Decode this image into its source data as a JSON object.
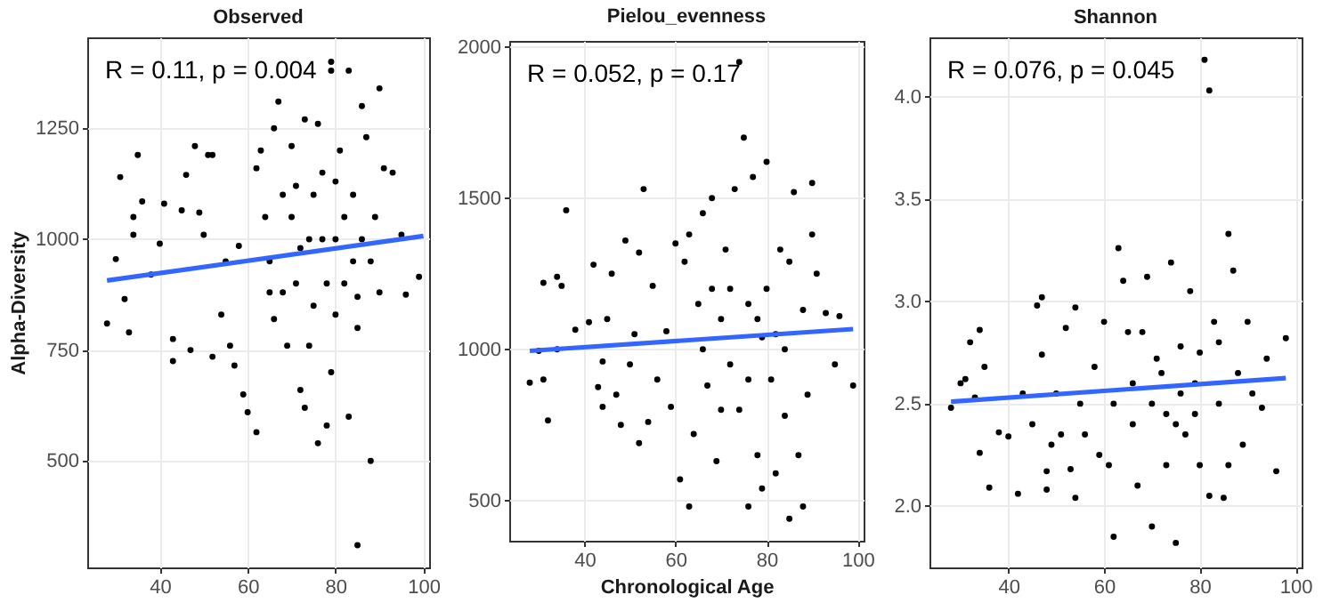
{
  "chart_data": [
    {
      "type": "scatter",
      "title": "Observed",
      "ylabel": "Alpha-Diversity",
      "annotations": [
        "R = 0.11, p = 0.004"
      ],
      "xlim": [
        23.5,
        101.3
      ],
      "ylim": [
        260,
        1455
      ],
      "xticks": [
        40,
        60,
        80,
        100
      ],
      "yticks": [
        500,
        750,
        1000,
        1250
      ],
      "grid": true,
      "series": [
        {
          "type": "scatter",
          "marker": "circle",
          "color": "#000000",
          "x": [
            28,
            30,
            31,
            32,
            33,
            34,
            34,
            35,
            36,
            38,
            40,
            41,
            43,
            43,
            45,
            46,
            47,
            48,
            49,
            50,
            51,
            52,
            52,
            54,
            55,
            56,
            57,
            58,
            59,
            60,
            62,
            62,
            63,
            64,
            65,
            66,
            67,
            68,
            69,
            70,
            71,
            72,
            73,
            73,
            74,
            75,
            76,
            76,
            77,
            78,
            79,
            79,
            79,
            80,
            81,
            82,
            83,
            83,
            84,
            85,
            85,
            86,
            87,
            88,
            88,
            89,
            90,
            90,
            91,
            93,
            95,
            96,
            99,
            65,
            70,
            72,
            75,
            78,
            80,
            82,
            68,
            74,
            77,
            84,
            86,
            66,
            71,
            80,
            85
          ],
          "values": [
            810,
            955,
            1140,
            865,
            790,
            1050,
            1010,
            1190,
            1085,
            920,
            990,
            1080,
            775,
            725,
            1065,
            1145,
            750,
            1210,
            1060,
            1010,
            1190,
            1190,
            735,
            830,
            950,
            760,
            715,
            985,
            650,
            610,
            565,
            1160,
            1200,
            1050,
            880,
            1250,
            1310,
            1100,
            760,
            1210,
            900,
            660,
            1270,
            620,
            1000,
            850,
            540,
            1260,
            1150,
            580,
            1400,
            1380,
            700,
            1000,
            1200,
            900,
            1380,
            600,
            1100,
            310,
            800,
            1300,
            1230,
            500,
            950,
            1050,
            1340,
            880,
            1160,
            1150,
            1010,
            875,
            915,
            950,
            1050,
            980,
            1100,
            900,
            830,
            1050,
            880,
            760,
            1000,
            950,
            1000,
            820,
            1120,
            1130,
            870
          ]
        },
        {
          "type": "line",
          "marker": "none",
          "color": "#3366ff",
          "x": [
            28,
            100
          ],
          "values": [
            907,
            1007
          ]
        }
      ]
    },
    {
      "type": "scatter",
      "title": "Pielou_evenness",
      "xlabel": "Chronological Age",
      "annotations": [
        "R = 0.052, p = 0.17"
      ],
      "xlim": [
        23.5,
        101.3
      ],
      "ylim": [
        367,
        2020
      ],
      "xticks": [
        40,
        60,
        80,
        100
      ],
      "yticks": [
        500,
        1000,
        1500,
        2000
      ],
      "grid": true,
      "series": [
        {
          "type": "scatter",
          "marker": "circle",
          "color": "#000000",
          "x": [
            28,
            30,
            31,
            31,
            32,
            34,
            34,
            35,
            36,
            38,
            41,
            42,
            43,
            44,
            44,
            45,
            46,
            47,
            48,
            49,
            50,
            51,
            52,
            52,
            53,
            54,
            55,
            56,
            58,
            59,
            60,
            61,
            62,
            63,
            63,
            64,
            65,
            66,
            67,
            68,
            69,
            70,
            71,
            72,
            73,
            74,
            75,
            76,
            76,
            77,
            78,
            79,
            79,
            80,
            80,
            81,
            82,
            83,
            84,
            85,
            85,
            86,
            87,
            88,
            88,
            89,
            90,
            90,
            91,
            93,
            95,
            96,
            99,
            74,
            66,
            70,
            72,
            78,
            82,
            84,
            76,
            68
          ],
          "values": [
            890,
            995,
            1220,
            900,
            765,
            1000,
            1240,
            1210,
            1460,
            1065,
            1090,
            1280,
            875,
            960,
            810,
            1100,
            1250,
            850,
            750,
            1360,
            950,
            1050,
            1320,
            690,
            1530,
            760,
            1210,
            900,
            1060,
            810,
            1350,
            570,
            1290,
            480,
            1380,
            720,
            1150,
            1450,
            880,
            1500,
            630,
            1100,
            1330,
            950,
            1530,
            800,
            1700,
            480,
            1150,
            1570,
            650,
            540,
            1040,
            1620,
            1200,
            900,
            590,
            1330,
            1000,
            440,
            1290,
            1520,
            650,
            480,
            1130,
            850,
            1550,
            1380,
            1250,
            1120,
            950,
            1110,
            880,
            1950,
            1000,
            800,
            1200,
            1100,
            1050,
            780,
            900,
            1200
          ]
        },
        {
          "type": "line",
          "marker": "none",
          "color": "#3366ff",
          "x": [
            28,
            99
          ],
          "values": [
            995,
            1067
          ]
        }
      ]
    },
    {
      "type": "scatter",
      "title": "Shannon",
      "annotations": [
        "R = 0.076, p = 0.045"
      ],
      "xlim": [
        23.5,
        101.3
      ],
      "ylim": [
        1.7,
        4.29
      ],
      "xticks": [
        40,
        60,
        80,
        100
      ],
      "yticks": [
        {
          "value": 2,
          "label": "2.0"
        },
        2.5,
        {
          "value": 3,
          "label": "3.0"
        },
        3.5,
        {
          "value": 4,
          "label": "4.0"
        }
      ],
      "grid": true,
      "series": [
        {
          "type": "scatter",
          "marker": "circle",
          "color": "#000000",
          "x": [
            28,
            30,
            31,
            32,
            33,
            34,
            34,
            35,
            36,
            38,
            40,
            42,
            43,
            45,
            46,
            47,
            47,
            48,
            48,
            49,
            50,
            51,
            52,
            53,
            54,
            54,
            55,
            56,
            58,
            59,
            60,
            61,
            62,
            62,
            63,
            64,
            65,
            66,
            67,
            68,
            69,
            70,
            70,
            72,
            73,
            74,
            75,
            75,
            76,
            77,
            78,
            79,
            80,
            80,
            81,
            82,
            82,
            83,
            84,
            85,
            86,
            86,
            87,
            88,
            89,
            90,
            91,
            93,
            94,
            96,
            98,
            66,
            71,
            76,
            79,
            84,
            73
          ],
          "values": [
            2.48,
            2.6,
            2.62,
            2.8,
            2.53,
            2.86,
            2.26,
            2.68,
            2.09,
            2.36,
            2.34,
            2.06,
            2.55,
            2.4,
            2.98,
            3.02,
            2.74,
            2.08,
            2.17,
            2.3,
            2.55,
            2.35,
            2.87,
            2.18,
            2.04,
            2.97,
            2.5,
            2.35,
            2.68,
            2.25,
            2.9,
            2.2,
            1.85,
            2.5,
            3.26,
            3.1,
            2.85,
            2.4,
            2.1,
            2.85,
            3.12,
            1.9,
            2.5,
            2.65,
            2.2,
            3.19,
            1.82,
            2.4,
            2.78,
            2.35,
            3.05,
            2.6,
            2.75,
            2.2,
            4.18,
            4.03,
            2.05,
            2.9,
            2.5,
            2.04,
            3.33,
            2.2,
            3.15,
            2.65,
            2.3,
            2.9,
            2.55,
            2.48,
            2.72,
            2.17,
            2.82,
            2.6,
            2.72,
            2.55,
            2.45,
            2.8,
            2.45
          ]
        },
        {
          "type": "line",
          "marker": "none",
          "color": "#3366ff",
          "x": [
            28,
            98
          ],
          "values": [
            2.51,
            2.625
          ]
        }
      ]
    }
  ]
}
